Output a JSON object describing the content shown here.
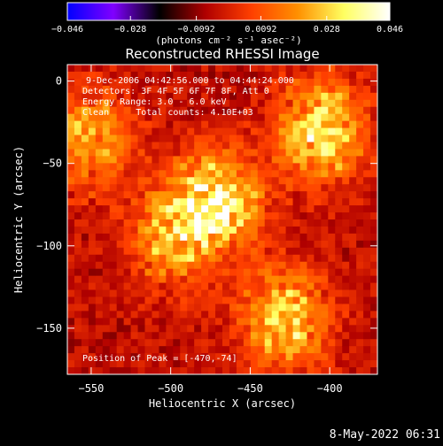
{
  "colorbar": {
    "tick_labels": [
      "-0.046",
      "-0.028",
      "-0.0092",
      "0.0092",
      "0.028",
      "0.046"
    ],
    "units_label": "(photons cm⁻² s⁻¹ asec⁻²)",
    "range": [
      -0.046,
      0.046
    ],
    "colormap": "purple-black-red-yellow-white (RHESSI)",
    "colormap_stops": [
      "#0000ff",
      "#8000ff",
      "#000000",
      "#b00000",
      "#ff4000",
      "#ff9000",
      "#ffff60",
      "#ffffff"
    ]
  },
  "chart_data": {
    "type": "heatmap",
    "title": "Reconstructed RHESSI Image",
    "xlabel": "Heliocentric X (arcsec)",
    "ylabel": "Heliocentric Y (arcsec)",
    "xlim": [
      -565,
      -370
    ],
    "ylim": [
      -178,
      10
    ],
    "x_ticks": [
      -550,
      -500,
      -450,
      -400
    ],
    "y_ticks": [
      0,
      -50,
      -100,
      -150
    ],
    "x_tick_labels": [
      "−550",
      "−500",
      "−450",
      "−400"
    ],
    "y_tick_labels": [
      "0",
      "−50",
      "−100",
      "−150"
    ],
    "annotations": [
      "9-Dec-2006 04:42:56.000 to 04:44:24.000",
      "Detectors: 3F 4F 5F 6F 7F 8F, Att 0",
      "Energy Range: 3.0 - 6.0 keV",
      "Clean     Total counts: 4.10E+03"
    ],
    "peak_label": "Position of Peak = [-470,-74]",
    "peak_position": [
      -470,
      -74
    ],
    "bright_regions": [
      {
        "x": -470,
        "y": -74,
        "peak": 0.046
      },
      {
        "x": -405,
        "y": -30,
        "peak": 0.04
      },
      {
        "x": -428,
        "y": -145,
        "peak": 0.036
      },
      {
        "x": -550,
        "y": -35,
        "peak": 0.03
      },
      {
        "x": -500,
        "y": -95,
        "peak": 0.028
      }
    ]
  },
  "footer": {
    "timestamp": "8-May-2022 06:31"
  }
}
